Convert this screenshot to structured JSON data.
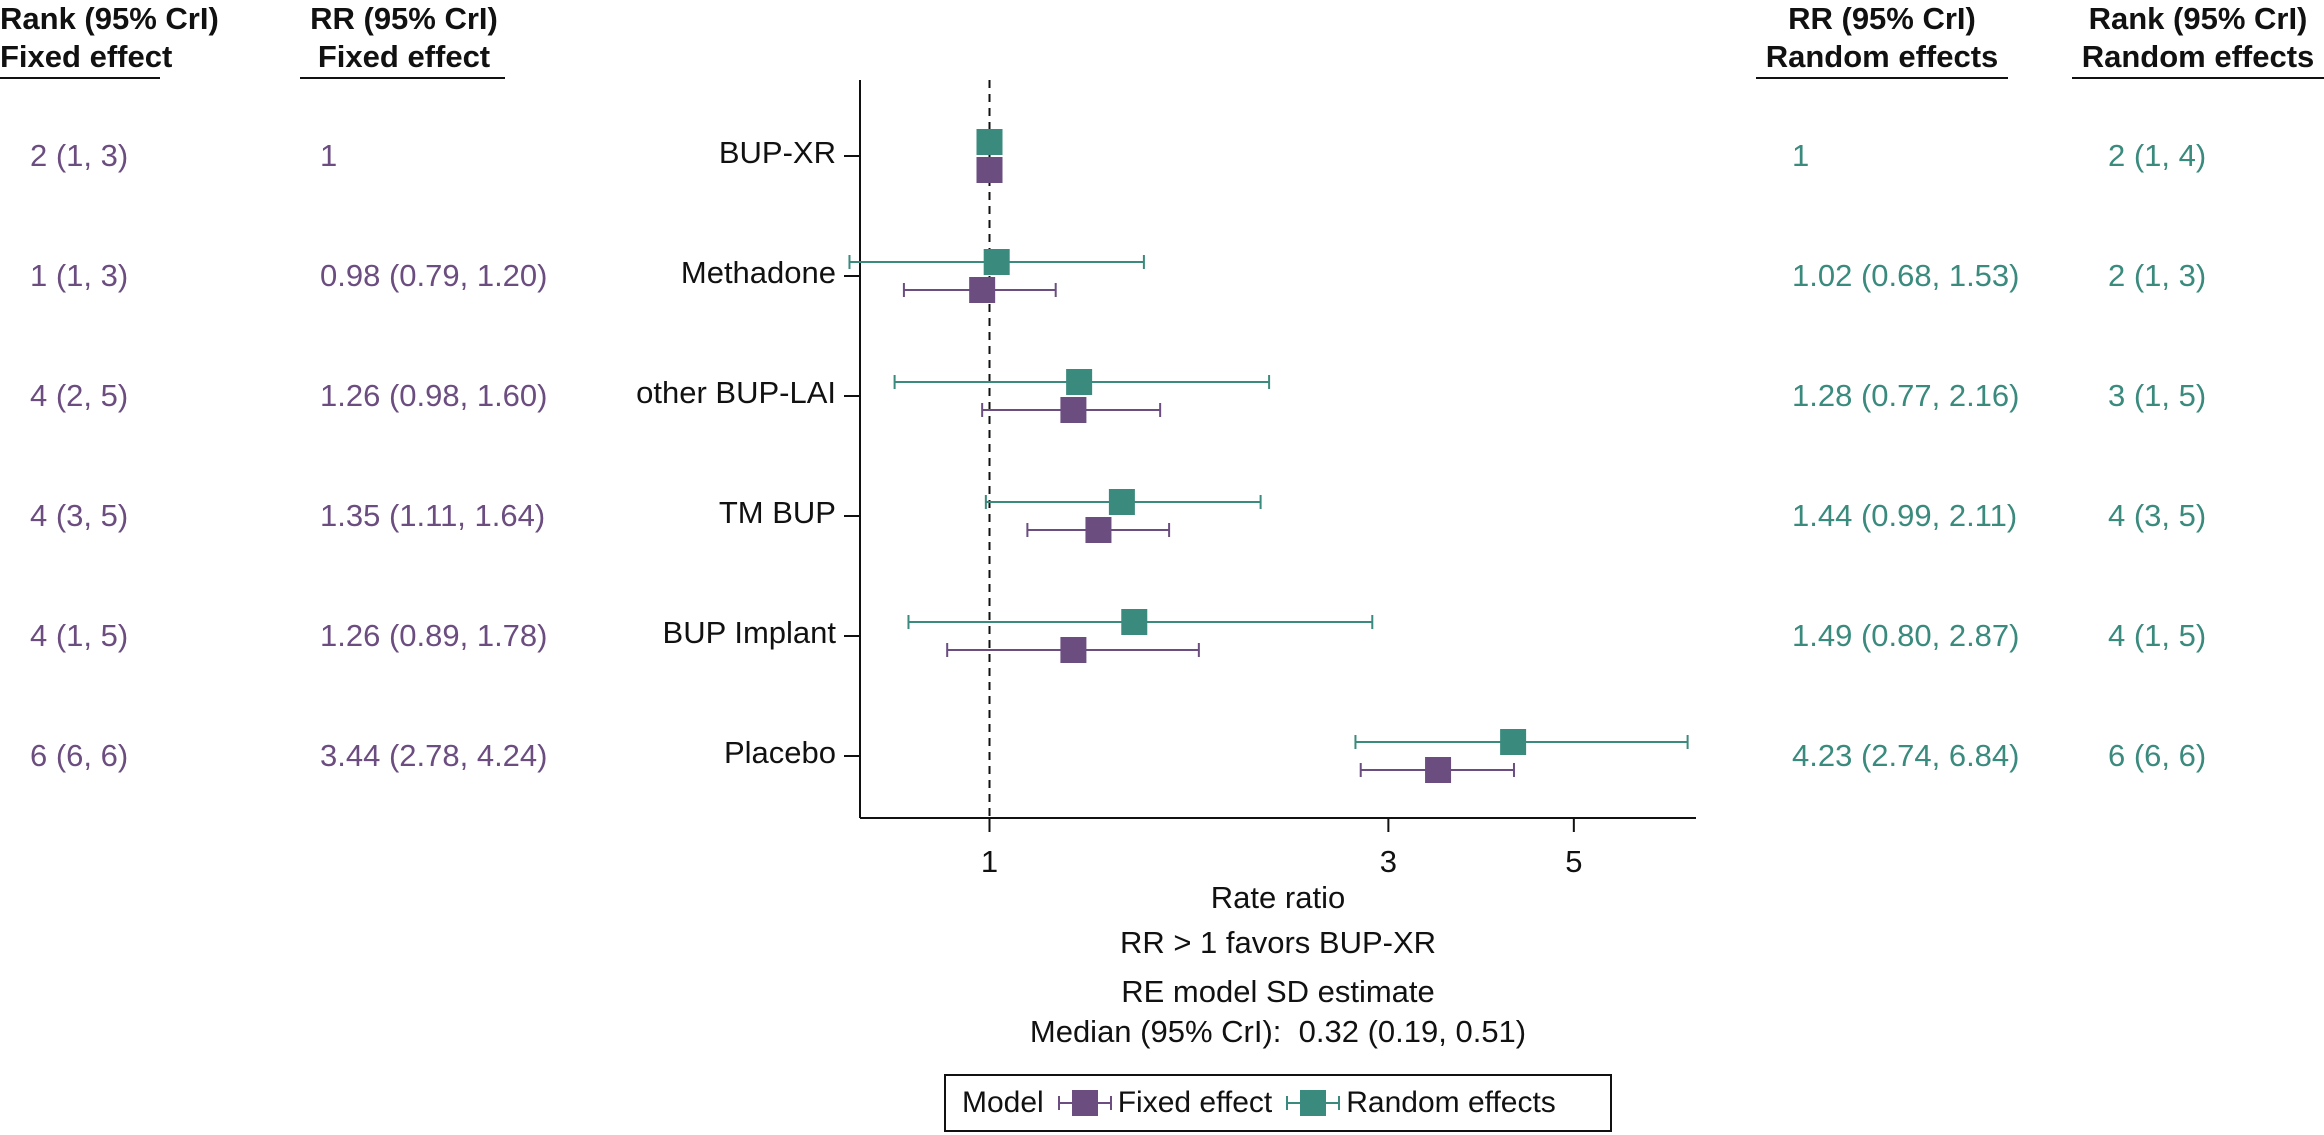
{
  "colors": {
    "fixed": "#6b4d80",
    "random": "#3a8a7d",
    "axis": "#111111"
  },
  "headers": {
    "fixed_rank": [
      "Rank (95% CrI)",
      "Fixed effect"
    ],
    "fixed_rr": [
      "RR (95% CrI)",
      "Fixed effect"
    ],
    "random_rr": [
      "RR (95% CrI)",
      "Random effects"
    ],
    "random_rank": [
      "Rank (95% CrI)",
      "Random effects"
    ]
  },
  "rows": [
    {
      "label": "BUP-XR",
      "fixed_rank": "2 (1, 3)",
      "fixed_rr": "1",
      "random_rr": "1",
      "random_rank": "2 (1, 4)"
    },
    {
      "label": "Methadone",
      "fixed_rank": "1 (1, 3)",
      "fixed_rr": "0.98 (0.79, 1.20)",
      "random_rr": "1.02 (0.68, 1.53)",
      "random_rank": "2 (1, 3)"
    },
    {
      "label": "other BUP-LAI",
      "fixed_rank": "4 (2, 5)",
      "fixed_rr": "1.26 (0.98, 1.60)",
      "random_rr": "1.28 (0.77, 2.16)",
      "random_rank": "3 (1, 5)"
    },
    {
      "label": "TM BUP",
      "fixed_rank": "4 (3, 5)",
      "fixed_rr": "1.35 (1.11, 1.64)",
      "random_rr": "1.44 (0.99, 2.11)",
      "random_rank": "4 (3, 5)"
    },
    {
      "label": "BUP Implant",
      "fixed_rank": "4 (1, 5)",
      "fixed_rr": "1.26 (0.89, 1.78)",
      "random_rr": "1.49 (0.80, 2.87)",
      "random_rank": "4 (1, 5)"
    },
    {
      "label": "Placebo",
      "fixed_rank": "6 (6, 6)",
      "fixed_rr": "3.44 (2.78, 4.24)",
      "random_rr": "4.23 (2.74, 6.84)",
      "random_rank": "6 (6, 6)"
    }
  ],
  "chart_data": {
    "type": "scatter",
    "subtype": "forest",
    "xscale": "log",
    "xlim": [
      0.7,
      7.0
    ],
    "xticks": [
      1,
      3,
      5
    ],
    "xtick_labels": [
      "1",
      "3",
      "5"
    ],
    "reference_line": 1,
    "xlabel": "Rate ratio",
    "categories": [
      "BUP-XR",
      "Methadone",
      "other BUP-LAI",
      "TM BUP",
      "BUP Implant",
      "Placebo"
    ],
    "series": [
      {
        "name": "Fixed effect",
        "color": "#6b4d80",
        "estimate": [
          1,
          0.98,
          1.26,
          1.35,
          1.26,
          3.44
        ],
        "lower": [
          null,
          0.79,
          0.98,
          1.11,
          0.89,
          2.78
        ],
        "upper": [
          null,
          1.2,
          1.6,
          1.64,
          1.78,
          4.24
        ]
      },
      {
        "name": "Random effects",
        "color": "#3a8a7d",
        "estimate": [
          1,
          1.02,
          1.28,
          1.44,
          1.49,
          4.23
        ],
        "lower": [
          null,
          0.68,
          0.77,
          0.99,
          0.8,
          2.74
        ],
        "upper": [
          null,
          1.53,
          2.16,
          2.11,
          2.87,
          6.84
        ]
      }
    ],
    "annotations": [
      "RR > 1 favors BUP-XR",
      "RE model SD estimate",
      "Median (95% CrI):  0.32 (0.19, 0.51)"
    ],
    "legend": {
      "title": "Model",
      "placement": "bottom",
      "entries": [
        "Fixed effect",
        "Random effects"
      ]
    },
    "grid": false
  }
}
